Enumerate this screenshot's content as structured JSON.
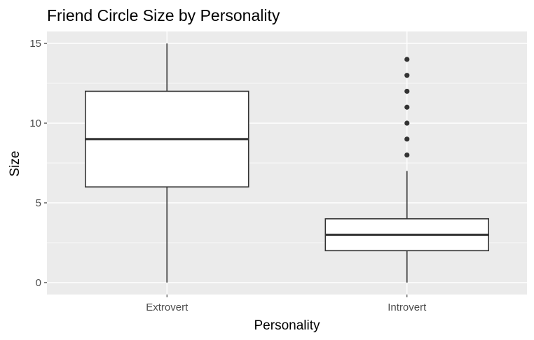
{
  "chart_data": {
    "type": "boxplot",
    "title": "Friend Circle Size by Personality",
    "xlabel": "Personality",
    "ylabel": "Size",
    "ylim": [
      -0.75,
      15.75
    ],
    "yticks": [
      0,
      5,
      10,
      15
    ],
    "categories": [
      "Extrovert",
      "Introvert"
    ],
    "boxes": [
      {
        "category": "Extrovert",
        "min": 0,
        "q1": 6,
        "median": 9,
        "q3": 12,
        "max": 15,
        "outliers": []
      },
      {
        "category": "Introvert",
        "min": 0,
        "q1": 2,
        "median": 3,
        "q3": 4,
        "max": 7,
        "outliers": [
          8,
          9,
          10,
          11,
          12,
          13,
          14
        ]
      }
    ],
    "grid": true,
    "legend": "none"
  },
  "colors": {
    "panel_background": "#ebebeb",
    "grid_line": "#ffffff",
    "box_fill": "#ffffff",
    "box_stroke": "#333333",
    "tick_label": "#4d4d4d",
    "axis_tick": "#333333"
  }
}
